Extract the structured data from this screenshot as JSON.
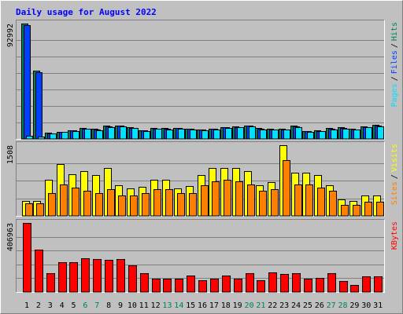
{
  "title": "Daily usage for August 2022",
  "legend_separator": "/",
  "categories": [
    "1",
    "2",
    "3",
    "4",
    "5",
    "6",
    "7",
    "8",
    "9",
    "10",
    "11",
    "12",
    "13",
    "14",
    "15",
    "16",
    "17",
    "18",
    "19",
    "20",
    "21",
    "22",
    "23",
    "24",
    "25",
    "26",
    "27",
    "28",
    "29",
    "30",
    "31"
  ],
  "category_colors": [
    "#000000",
    "#000000",
    "#000000",
    "#000000",
    "#000000",
    "#00805c",
    "#00805c",
    "#000000",
    "#000000",
    "#000000",
    "#000000",
    "#000000",
    "#00805c",
    "#00805c",
    "#000000",
    "#000000",
    "#000000",
    "#000000",
    "#000000",
    "#00805c",
    "#00805c",
    "#000000",
    "#000000",
    "#000000",
    "#000000",
    "#000000",
    "#00805c",
    "#00805c",
    "#000000",
    "#000000",
    "#000000"
  ],
  "chart_data": [
    {
      "type": "bar",
      "ylim": [
        0,
        92992
      ],
      "yticks": [
        92992
      ],
      "series": [
        {
          "name": "Hits",
          "color": "#00805c",
          "values": [
            92992,
            55000,
            5000,
            6000,
            7200,
            8800,
            8000,
            10500,
            11000,
            9500,
            7000,
            8800,
            8600,
            9000,
            8500,
            7800,
            8400,
            9800,
            10300,
            11000,
            8700,
            8100,
            8300,
            10500,
            6600,
            6800,
            8700,
            9200,
            8100,
            10300,
            11200
          ]
        },
        {
          "name": "Files",
          "color": "#0040ff",
          "values": [
            92000,
            54000,
            4700,
            5700,
            6900,
            8400,
            7600,
            10000,
            10500,
            9000,
            6700,
            8400,
            8200,
            8600,
            8100,
            7400,
            8000,
            9300,
            9800,
            10500,
            8300,
            7700,
            7900,
            10000,
            6300,
            6500,
            8300,
            8800,
            7700,
            9800,
            10700
          ]
        },
        {
          "name": "Pages",
          "color": "#00e0ff",
          "values": [
            2500,
            2200,
            4500,
            5400,
            6500,
            8000,
            7200,
            9500,
            10000,
            8600,
            6300,
            8000,
            7800,
            8200,
            7700,
            7000,
            7600,
            8900,
            9300,
            10000,
            7900,
            7300,
            7500,
            9500,
            6000,
            6100,
            7900,
            8300,
            7300,
            9300,
            10200
          ]
        }
      ]
    },
    {
      "type": "bar",
      "ylim": [
        0,
        1508
      ],
      "yticks": [
        1508
      ],
      "series": [
        {
          "name": "Visits",
          "color": "#ffff00",
          "values": [
            318,
            318,
            771,
            1106,
            888,
            955,
            871,
            1022,
            653,
            586,
            620,
            771,
            771,
            586,
            637,
            871,
            1022,
            1022,
            1022,
            955,
            653,
            720,
            1508,
            921,
            921,
            871,
            653,
            352,
            318,
            436,
            436
          ]
        },
        {
          "name": "Sites",
          "color": "#ff8000",
          "values": [
            268,
            268,
            486,
            670,
            603,
            536,
            486,
            570,
            436,
            436,
            486,
            570,
            570,
            486,
            486,
            653,
            737,
            771,
            737,
            670,
            536,
            570,
            1190,
            670,
            670,
            603,
            536,
            235,
            235,
            302,
            302
          ]
        }
      ]
    },
    {
      "type": "bar",
      "ylim": [
        0,
        406963
      ],
      "yticks": [
        406963
      ],
      "series": [
        {
          "name": "KBytes",
          "color": "#ff0000",
          "values": [
            406963,
            251500,
            109700,
            173800,
            173800,
            196600,
            192000,
            187500,
            192000,
            155500,
            109700,
            77700,
            77700,
            77700,
            96000,
            68600,
            77700,
            96000,
            77700,
            109700,
            68600,
            114300,
            105200,
            109700,
            77700,
            82300,
            109700,
            64000,
            41200,
            91500,
            91500
          ]
        }
      ]
    }
  ]
}
